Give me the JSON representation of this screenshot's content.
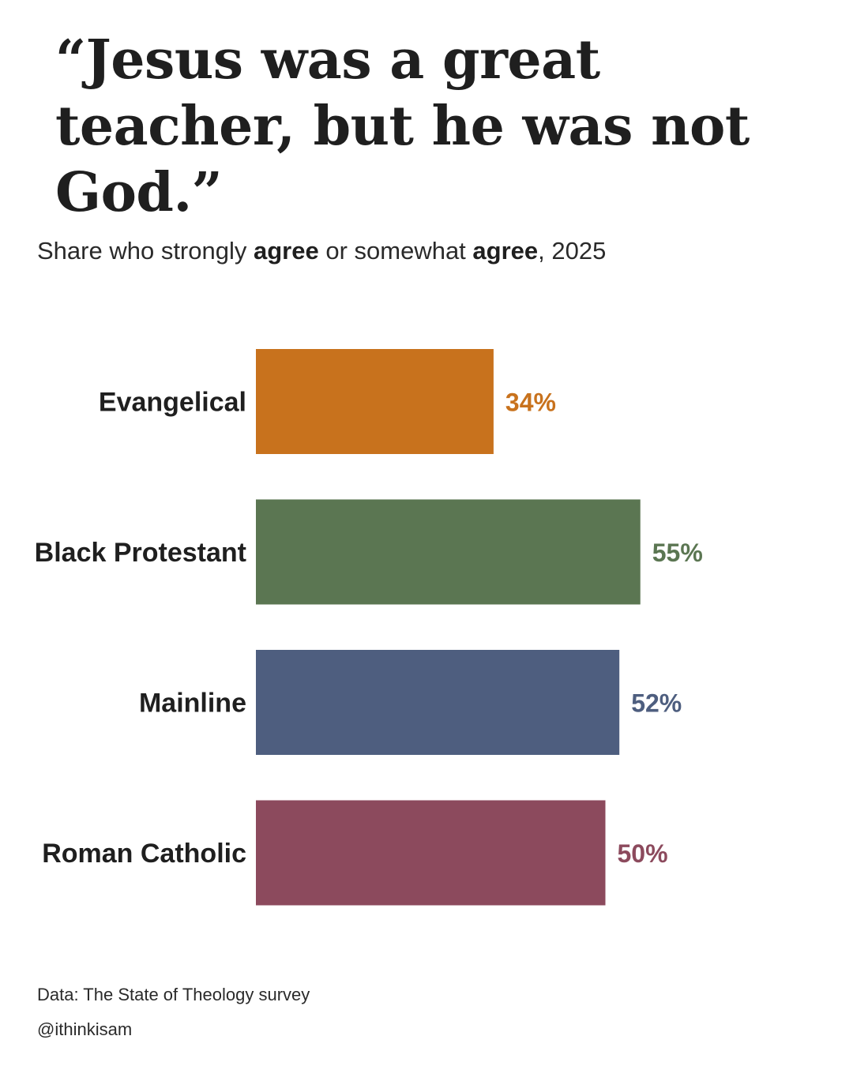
{
  "title": "“Jesus was a great teacher, but he was not God.”",
  "subtitle": {
    "part1": "Share who strongly ",
    "bold1": "agree",
    "part2": " or somewhat ",
    "bold2": "agree",
    "part3": ", 2025"
  },
  "footer": {
    "source": "Data: The State of Theology survey",
    "handle": "@ithinkisam"
  },
  "chart_data": {
    "type": "bar",
    "orientation": "horizontal",
    "categories": [
      "Evangelical",
      "Black Protestant",
      "Mainline",
      "Roman Catholic"
    ],
    "values": [
      34,
      55,
      52,
      50
    ],
    "value_labels": [
      "34%",
      "55%",
      "52%",
      "50%"
    ],
    "unit": "%",
    "colors": [
      "#c8721d",
      "#5b7652",
      "#4e5e7f",
      "#8c4a5d"
    ],
    "title": "“Jesus was a great teacher, but he was not God.”",
    "xlabel": "",
    "ylabel": "",
    "xlim": [
      0,
      100
    ],
    "grid": false,
    "legend": "none"
  }
}
